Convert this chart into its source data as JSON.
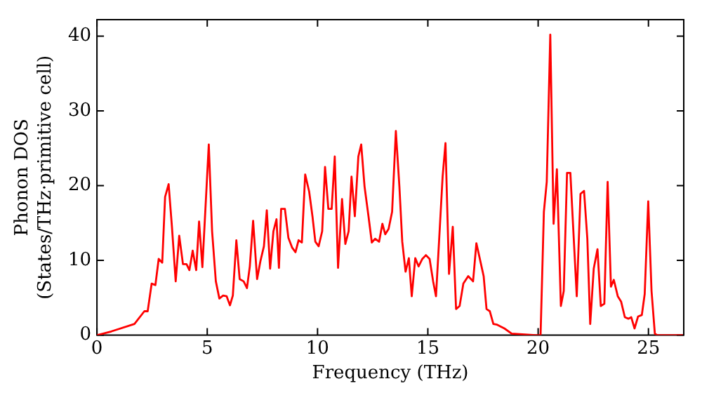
{
  "chart_data": {
    "type": "line",
    "xlabel": "Frequency (THz)",
    "ylabel": "Phonon DOS\n(States/THz·primitive cell)",
    "xlim": [
      0,
      26.6
    ],
    "ylim": [
      0,
      42.2
    ],
    "xticks": [
      0,
      5,
      10,
      15,
      20,
      25
    ],
    "yticks": [
      0,
      10,
      20,
      30,
      40
    ],
    "grid": false,
    "legend": false,
    "marker": "none",
    "line_style": "solid",
    "series": [
      {
        "color": "#ff0000",
        "x": [
          0,
          0.65,
          1.7,
          2.15,
          2.3,
          2.48,
          2.65,
          2.8,
          2.96,
          3.09,
          3.25,
          3.4,
          3.57,
          3.73,
          3.9,
          4.06,
          4.19,
          4.34,
          4.5,
          4.63,
          4.78,
          5.07,
          5.22,
          5.39,
          5.55,
          5.72,
          5.88,
          6.03,
          6.16,
          6.32,
          6.47,
          6.65,
          6.8,
          6.93,
          7.08,
          7.26,
          7.41,
          7.57,
          7.7,
          7.85,
          8.0,
          8.14,
          8.25,
          8.35,
          8.52,
          8.68,
          8.85,
          9.0,
          9.14,
          9.29,
          9.44,
          9.62,
          9.77,
          9.9,
          10.05,
          10.21,
          10.34,
          10.49,
          10.64,
          10.78,
          10.93,
          11.11,
          11.26,
          11.41,
          11.54,
          11.69,
          11.85,
          11.98,
          12.13,
          12.31,
          12.46,
          12.61,
          12.79,
          12.94,
          13.07,
          13.22,
          13.38,
          13.55,
          13.71,
          13.84,
          13.99,
          14.14,
          14.27,
          14.43,
          14.58,
          14.75,
          14.91,
          15.08,
          15.24,
          15.37,
          15.52,
          15.67,
          15.8,
          15.96,
          16.13,
          16.28,
          16.44,
          16.61,
          16.83,
          17.05,
          17.2,
          17.38,
          17.53,
          17.66,
          17.81,
          17.97,
          18.14,
          18.47,
          18.8,
          19.89,
          20.11,
          20.26,
          20.39,
          20.55,
          20.7,
          20.85,
          21.03,
          21.16,
          21.31,
          21.46,
          21.75,
          21.92,
          22.08,
          22.23,
          22.36,
          22.52,
          22.69,
          22.84,
          23.0,
          23.15,
          23.3,
          23.43,
          23.61,
          23.76,
          23.93,
          24.09,
          24.22,
          24.37,
          24.53,
          24.7,
          24.83,
          24.99,
          25.14,
          25.29,
          25.4,
          26.56
        ],
        "values": [
          0,
          0.5,
          1.5,
          3.2,
          3.2,
          6.9,
          6.7,
          10.2,
          9.7,
          18.5,
          20.2,
          14.5,
          7.2,
          13.3,
          9.5,
          9.5,
          8.7,
          11.3,
          8.7,
          15.2,
          9.1,
          25.5,
          13.9,
          7.2,
          4.9,
          5.3,
          5.2,
          4.0,
          5.3,
          12.7,
          7.5,
          7.2,
          6.3,
          9.2,
          15.3,
          7.5,
          9.9,
          11.9,
          16.7,
          8.9,
          13.9,
          15.5,
          9.0,
          16.9,
          16.9,
          13.0,
          11.7,
          11.1,
          12.7,
          12.4,
          21.5,
          19.2,
          15.9,
          12.5,
          11.9,
          13.9,
          22.5,
          16.9,
          16.9,
          23.9,
          9.0,
          18.2,
          12.2,
          13.9,
          21.2,
          15.9,
          23.9,
          25.5,
          19.9,
          15.9,
          12.4,
          12.9,
          12.5,
          14.9,
          13.5,
          14.2,
          16.5,
          27.3,
          19.9,
          12.5,
          8.5,
          10.3,
          5.2,
          10.3,
          9.2,
          10.2,
          10.7,
          10.2,
          7.2,
          5.2,
          13.2,
          21.2,
          25.7,
          8.2,
          14.5,
          3.5,
          3.9,
          6.9,
          7.9,
          7.2,
          12.3,
          9.9,
          7.9,
          3.5,
          3.2,
          1.5,
          1.4,
          0.9,
          0.2,
          0,
          0,
          16.5,
          20.5,
          40.2,
          14.9,
          22.2,
          3.9,
          5.9,
          21.7,
          21.7,
          5.2,
          18.9,
          19.3,
          12.9,
          1.5,
          8.9,
          11.5,
          3.9,
          4.2,
          20.5,
          6.5,
          7.4,
          5.2,
          4.5,
          2.4,
          2.2,
          2.4,
          0.9,
          2.5,
          2.7,
          5.5,
          17.9,
          5.9,
          0.2,
          0,
          0
        ]
      }
    ]
  }
}
